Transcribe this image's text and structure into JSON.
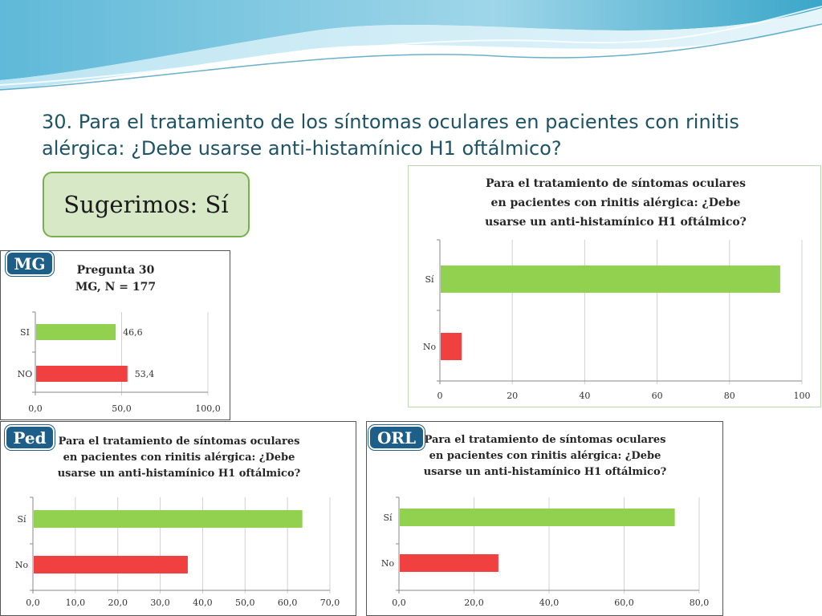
{
  "slide": {
    "title": "30. Para el tratamiento de los síntomas oculares en pacientes con rinitis alérgica: ¿Debe usarse anti-histamínico H1 oftálmico?",
    "suggestion": "Sugerimos: Sí"
  },
  "colors": {
    "si": "#92d050",
    "no": "#f04040",
    "tag": "#1e5f8a",
    "title": "#1e5366"
  },
  "chart_data": [
    {
      "id": "main",
      "type": "bar",
      "orientation": "horizontal",
      "title_lines": [
        "Para el tratamiento de síntomas oculares",
        "en pacientes con rinitis alérgica: ¿Debe",
        "usarse un anti-histamínico H1 oftálmico?"
      ],
      "categories": [
        "Sí",
        "No"
      ],
      "values": [
        94,
        6
      ],
      "xlim": [
        0,
        100
      ],
      "ticks": [
        "0",
        "20",
        "40",
        "60",
        "80",
        "100"
      ],
      "grid": true
    },
    {
      "id": "mg",
      "type": "bar",
      "orientation": "horizontal",
      "tag": "MG",
      "title_lines": [
        "Pregunta 30",
        "MG, N = 177"
      ],
      "categories": [
        "SI",
        "NO"
      ],
      "values": [
        46.6,
        53.4
      ],
      "value_labels": [
        "46,6",
        "53,4"
      ],
      "xlim": [
        0,
        100
      ],
      "ticks": [
        "0,0",
        "50,0",
        "100,0"
      ],
      "grid": true
    },
    {
      "id": "ped",
      "type": "bar",
      "orientation": "horizontal",
      "tag": "Ped",
      "title_lines": [
        "Para el tratamiento de síntomas oculares",
        "en pacientes con rinitis alérgica: ¿Debe",
        "usarse un anti-histamínico H1 oftálmico?"
      ],
      "categories": [
        "Sí",
        "No"
      ],
      "values": [
        63.5,
        36.5
      ],
      "xlim": [
        0,
        70
      ],
      "ticks": [
        "0,0",
        "10,0",
        "20,0",
        "30,0",
        "40,0",
        "50,0",
        "60,0",
        "70,0"
      ],
      "grid": true
    },
    {
      "id": "orl",
      "type": "bar",
      "orientation": "horizontal",
      "tag": "ORL",
      "title_lines": [
        "Para el tratamiento de síntomas oculares",
        "en pacientes con rinitis alérgica: ¿Debe",
        "usarse un anti-histamínico H1 oftálmico?"
      ],
      "categories": [
        "Sí",
        "No"
      ],
      "values": [
        73.5,
        26.5
      ],
      "xlim": [
        0,
        80
      ],
      "ticks": [
        "0,0",
        "20,0",
        "40,0",
        "60,0",
        "80,0"
      ],
      "grid": true
    }
  ]
}
